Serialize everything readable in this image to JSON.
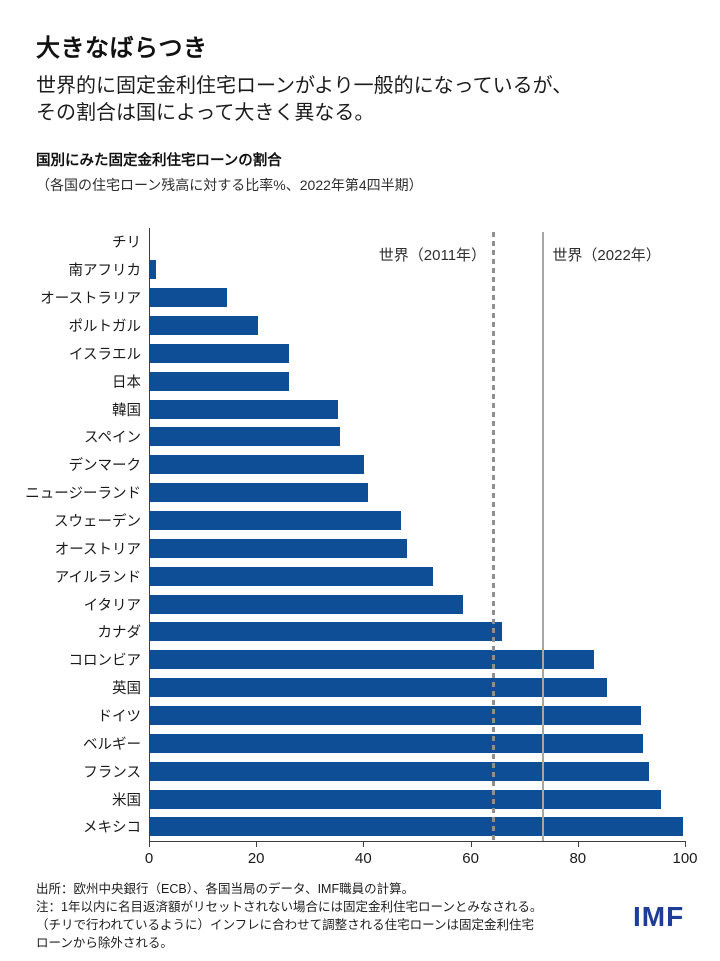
{
  "header": {
    "title": "大きなばらつき",
    "subtitle": "世界的に固定金利住宅ローンがより一般的になっているが、\nその割合は国によって大きく異なる。"
  },
  "figure": {
    "title": "国別にみた固定金利住宅ローンの割合",
    "subtitle": "（各国の住宅ローン残高に対する比率%、2022年第4四半期）"
  },
  "chart_data": {
    "type": "bar",
    "orientation": "horizontal",
    "title": "国別にみた固定金利住宅ローンの割合",
    "xlabel": "",
    "ylabel": "",
    "xlim": [
      0,
      100
    ],
    "xticks": [
      0,
      20,
      40,
      60,
      80,
      100
    ],
    "grid": false,
    "legend": false,
    "bar_color": "#0e4e96",
    "categories": [
      "チリ",
      "南アフリカ",
      "オーストラリア",
      "ポルトガル",
      "イスラエル",
      "日本",
      "韓国",
      "スペイン",
      "デンマーク",
      "ニュージーランド",
      "スウェーデン",
      "オーストリア",
      "アイルランド",
      "イタリア",
      "カナダ",
      "コロンビア",
      "英国",
      "ドイツ",
      "ベルギー",
      "フランス",
      "米国",
      "メキシコ"
    ],
    "values": [
      0,
      1.3,
      14.6,
      20.3,
      26.1,
      26.2,
      35.2,
      35.6,
      40.1,
      40.9,
      47.0,
      48.2,
      53.0,
      58.6,
      65.8,
      83.1,
      85.4,
      91.8,
      92.2,
      93.3,
      95.5,
      99.7
    ],
    "reference_lines": [
      {
        "label": "世界（2011年）",
        "value": 64.0,
        "style": "dashed",
        "color": "#8f8f8f",
        "label_side": "left"
      },
      {
        "label": "世界（2022年）",
        "value": 73.4,
        "style": "solid",
        "color": "#a6a6a6",
        "label_side": "right"
      }
    ]
  },
  "footer": {
    "source": "出所：欧州中央銀行（ECB）、各国当局のデータ、IMF職員の計算。",
    "note": "注：1年以内に名目返済額がリセットされない場合には固定金利住宅ローンとみなされる。\n（チリで行われているように）インフレに合わせて調整される住宅ローンは固定金利住宅\nローンから除外される。",
    "logo": "IMF",
    "logo_color": "#1e3d96"
  }
}
